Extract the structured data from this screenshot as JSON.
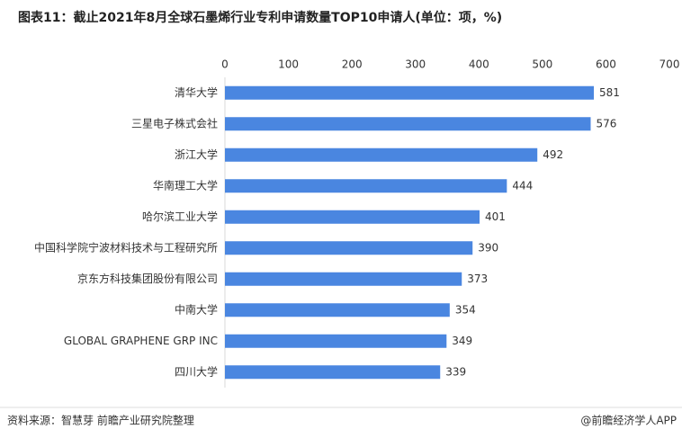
{
  "chart_data": {
    "type": "bar",
    "orientation": "horizontal",
    "title": "图表11：截止2021年8月全球石墨烯行业专利申请数量TOP10申请人(单位：项，%)",
    "categories": [
      "清华大学",
      "三星电子株式会社",
      "浙江大学",
      "华南理工大学",
      "哈尔滨工业大学",
      "中国科学院宁波材料技术与工程研究所",
      "京东方科技集团股份有限公司",
      "中南大学",
      "GLOBAL GRAPHENE GRP INC",
      "四川大学"
    ],
    "values": [
      581,
      576,
      492,
      444,
      401,
      390,
      373,
      354,
      349,
      339
    ],
    "color": "#4a86e0",
    "xlim": [
      0,
      700
    ],
    "xticks": [
      0,
      100,
      200,
      300,
      400,
      500,
      600,
      700
    ],
    "source": "资料来源：智慧芽 前瞻产业研究院整理",
    "credit": "@前瞻经济学人APP"
  }
}
